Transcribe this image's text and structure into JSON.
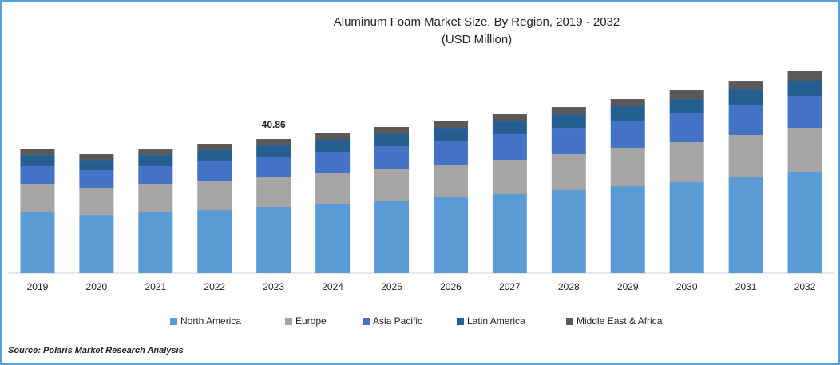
{
  "chart_data": {
    "type": "stacked-bar",
    "title": "Aluminum Foam Market Size, By Region, 2019 - 2032",
    "subtitle": "(USD Million)",
    "categories": [
      "2019",
      "2020",
      "2021",
      "2022",
      "2023",
      "2024",
      "2025",
      "2026",
      "2027",
      "2028",
      "2029",
      "2030",
      "2031",
      "2032"
    ],
    "series": [
      {
        "name": "North America",
        "color": "#5b9bd5",
        "values": [
          18.48,
          17.75,
          18.48,
          19.21,
          20.19,
          21.16,
          21.89,
          23.1,
          24.08,
          25.29,
          26.51,
          27.72,
          29.18,
          30.89
        ]
      },
      {
        "name": "Europe",
        "color": "#a5a5a5",
        "values": [
          8.51,
          8.03,
          8.51,
          8.76,
          9.0,
          9.24,
          9.97,
          9.97,
          10.46,
          10.94,
          11.67,
          12.16,
          12.89,
          13.38
        ]
      },
      {
        "name": "Asia Pacific",
        "color": "#4472c4",
        "values": [
          5.59,
          5.59,
          5.59,
          6.08,
          6.32,
          6.57,
          6.81,
          7.3,
          7.78,
          8.03,
          8.27,
          9.0,
          9.24,
          9.73
        ]
      },
      {
        "name": "Latin America",
        "color": "#255e91",
        "values": [
          3.4,
          3.16,
          3.4,
          3.4,
          3.4,
          3.65,
          3.65,
          3.89,
          3.89,
          4.13,
          4.38,
          4.13,
          4.62,
          4.62
        ]
      },
      {
        "name": "Middle East & Africa",
        "color": "#595959",
        "values": [
          1.95,
          1.7,
          1.7,
          1.95,
          1.95,
          1.95,
          2.19,
          2.19,
          2.19,
          2.19,
          2.19,
          2.68,
          2.43,
          2.92
        ]
      }
    ],
    "annotations": [
      {
        "x": "2023",
        "text": "40.86"
      }
    ],
    "legend": "bottom",
    "source": "Source: Polaris Market Research Analysis"
  }
}
